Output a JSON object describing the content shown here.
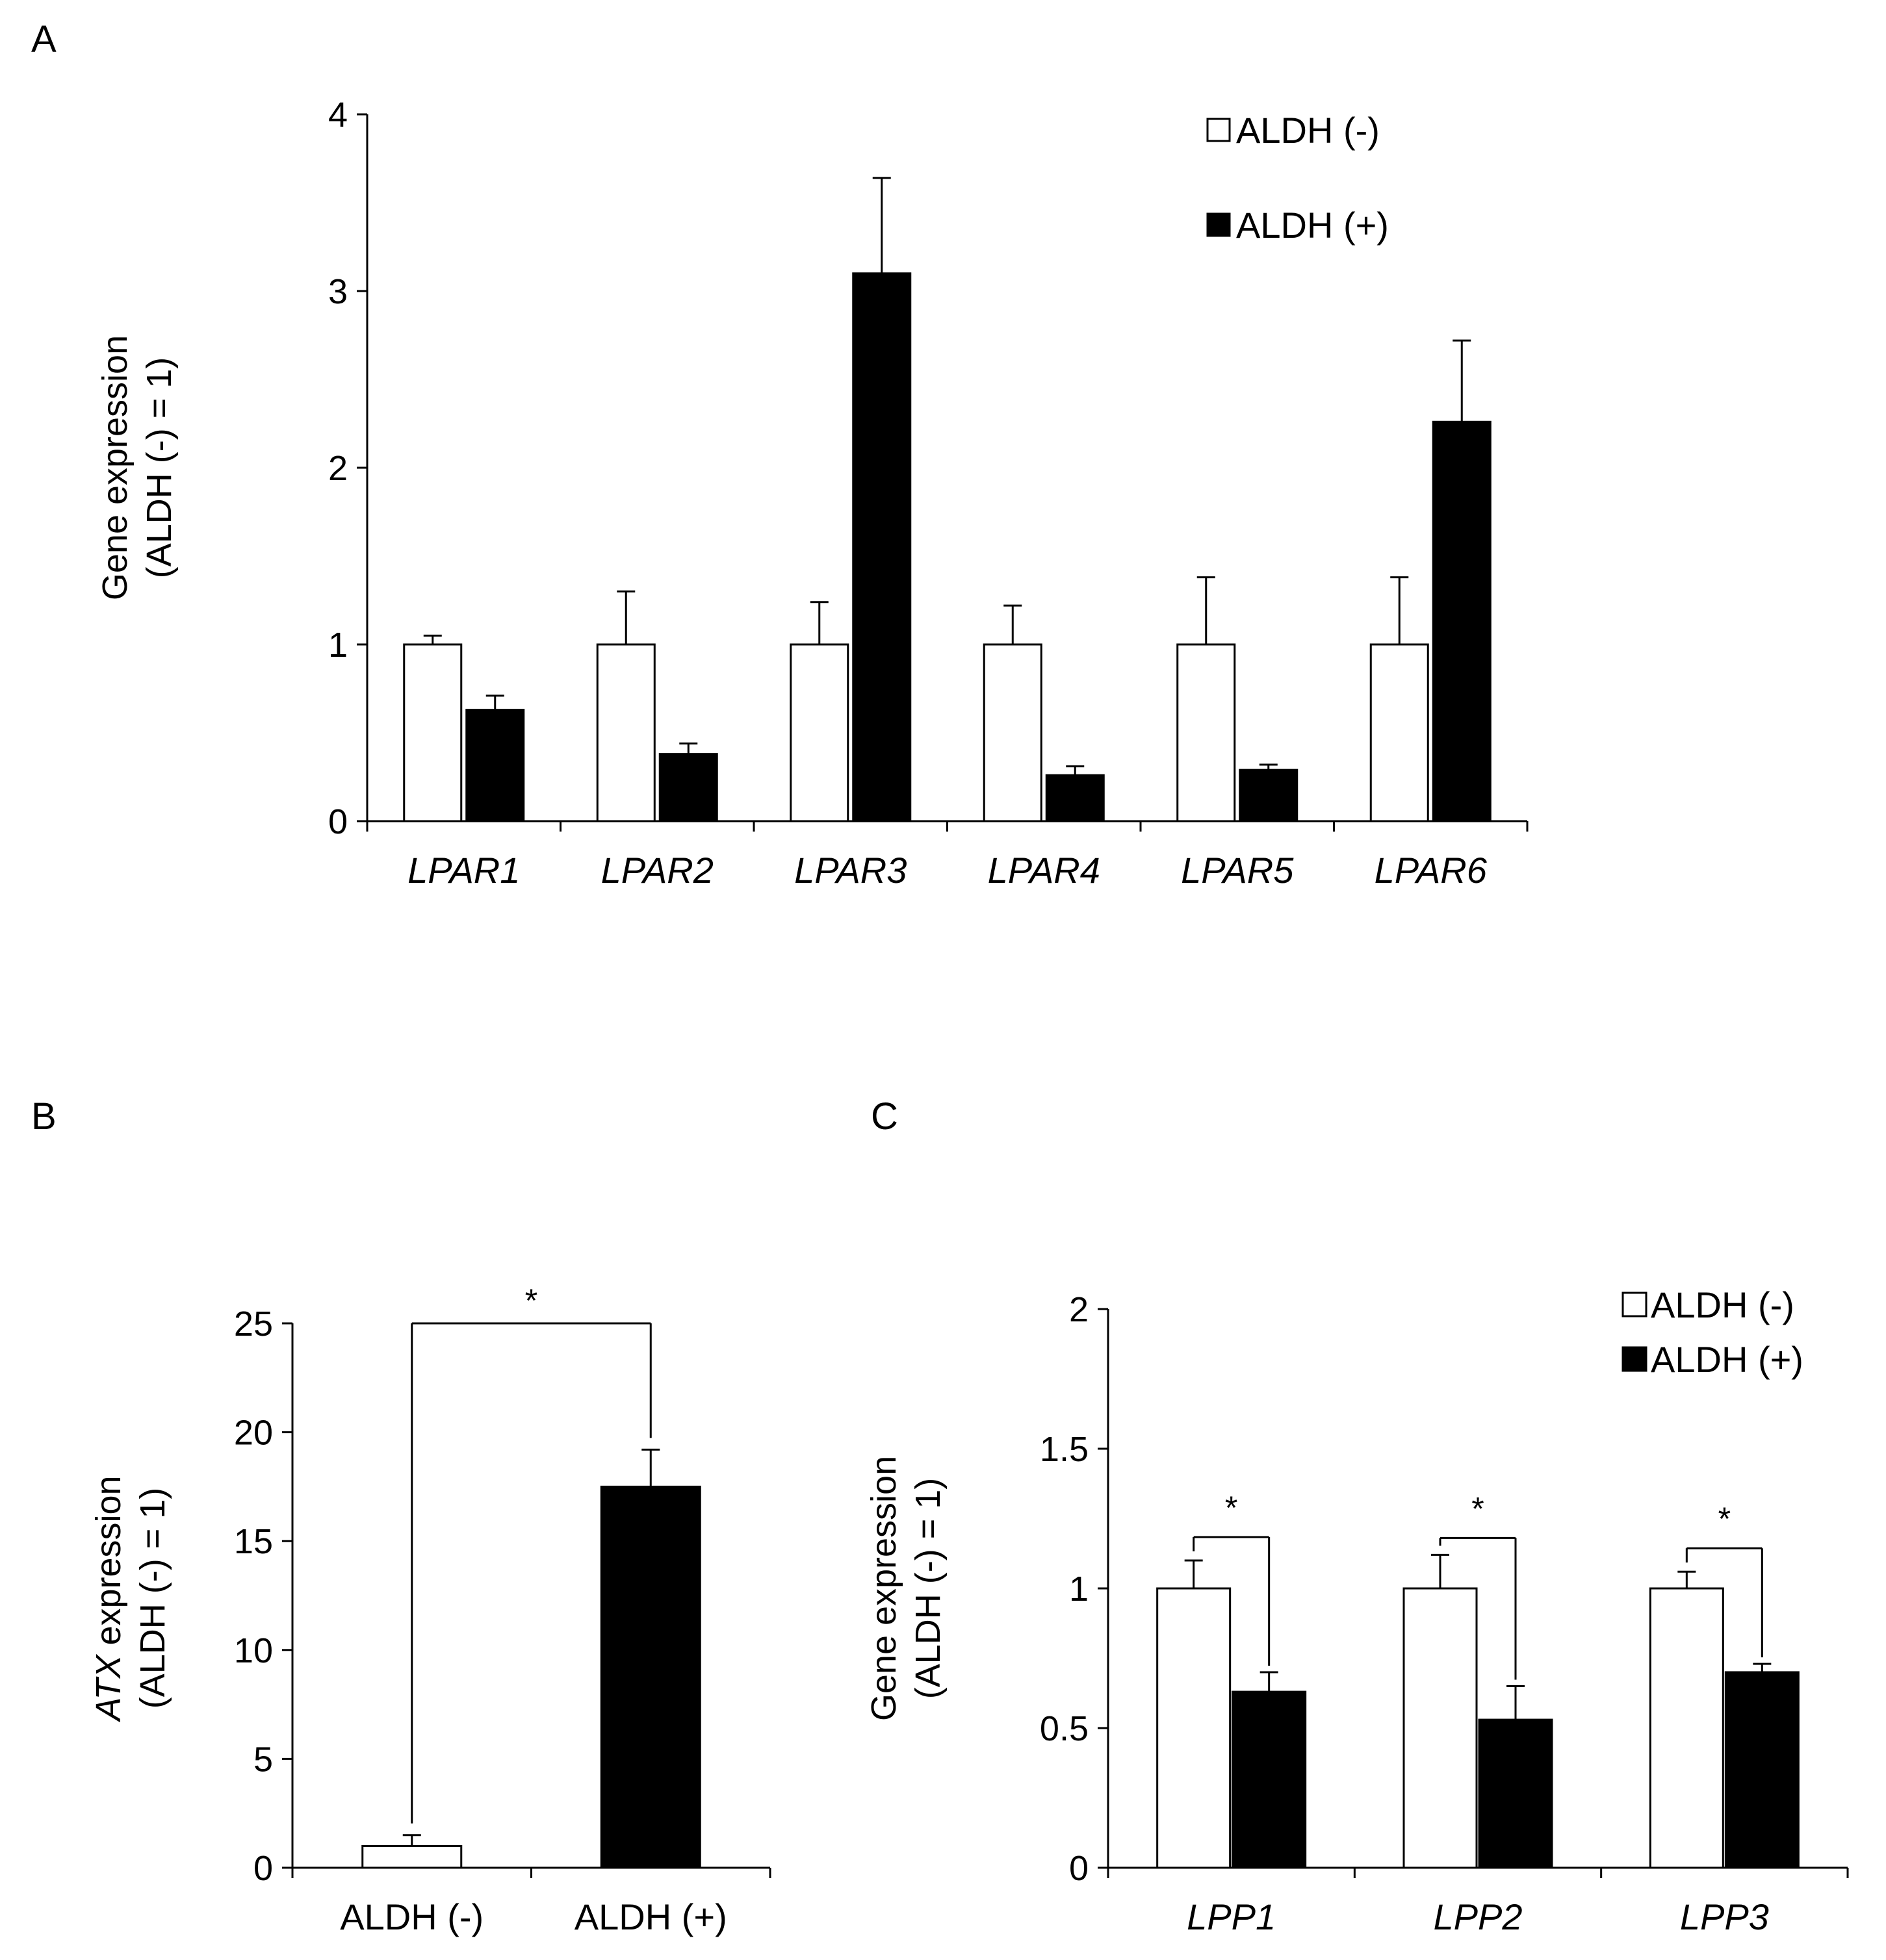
{
  "panels": {
    "A": {
      "letter": "A"
    },
    "B": {
      "letter": "B"
    },
    "C": {
      "letter": "C"
    }
  },
  "colors": {
    "aldh_neg_fill": "#ffffff",
    "aldh_pos_fill": "#000000",
    "stroke": "#000000"
  },
  "chart_data": [
    {
      "panel": "A",
      "type": "bar",
      "ylabel_line1": "Gene expression",
      "ylabel_line2": "(ALDH (-) = 1)",
      "ylim": [
        0,
        4
      ],
      "yticks": [
        "0",
        "1",
        "2",
        "3",
        "4"
      ],
      "categories": [
        "LPAR1",
        "LPAR2",
        "LPAR3",
        "LPAR4",
        "LPAR5",
        "LPAR6"
      ],
      "categories_italic": true,
      "legend_position": "top-right",
      "series": [
        {
          "name": "ALDH (-)",
          "values": [
            1,
            1,
            1,
            1,
            1,
            1
          ],
          "errors": [
            0.05,
            0.3,
            0.24,
            0.22,
            0.38,
            0.38
          ]
        },
        {
          "name": "ALDH (+)",
          "values": [
            0.63,
            0.38,
            3.1,
            0.26,
            0.29,
            2.26
          ],
          "errors": [
            0.08,
            0.06,
            0.54,
            0.05,
            0.03,
            0.46
          ]
        }
      ]
    },
    {
      "panel": "B",
      "type": "bar",
      "ylabel_italic_part": "ATX",
      "ylabel_rest": " expression",
      "ylabel_line2": "(ALDH (-) = 1)",
      "ylim": [
        0,
        25
      ],
      "yticks": [
        "0",
        "5",
        "10",
        "15",
        "20",
        "25"
      ],
      "categories": [
        "ALDH (-)",
        "ALDH (+)"
      ],
      "series": [
        {
          "name": "",
          "values": [
            1,
            17.5
          ],
          "errors": [
            0.5,
            1.7
          ]
        }
      ],
      "significance": [
        {
          "between": [
            0,
            1
          ],
          "label": "*"
        }
      ]
    },
    {
      "panel": "C",
      "type": "bar",
      "ylabel_line1": "Gene expression",
      "ylabel_line2": "(ALDH (-) = 1)",
      "ylim": [
        0,
        2
      ],
      "yticks": [
        "0",
        "0.5",
        "1",
        "1.5",
        "2"
      ],
      "categories": [
        "LPP1",
        "LPP2",
        "LPP3"
      ],
      "categories_italic": true,
      "legend_position": "top-right",
      "series": [
        {
          "name": "ALDH (-)",
          "values": [
            1,
            1,
            1
          ],
          "errors": [
            0.1,
            0.12,
            0.06
          ]
        },
        {
          "name": "ALDH (+)",
          "values": [
            0.63,
            0.53,
            0.7
          ],
          "errors": [
            0.07,
            0.12,
            0.03
          ]
        }
      ],
      "significance": [
        {
          "category": 0,
          "label": "*"
        },
        {
          "category": 1,
          "label": "*"
        },
        {
          "category": 2,
          "label": "*"
        }
      ]
    }
  ]
}
